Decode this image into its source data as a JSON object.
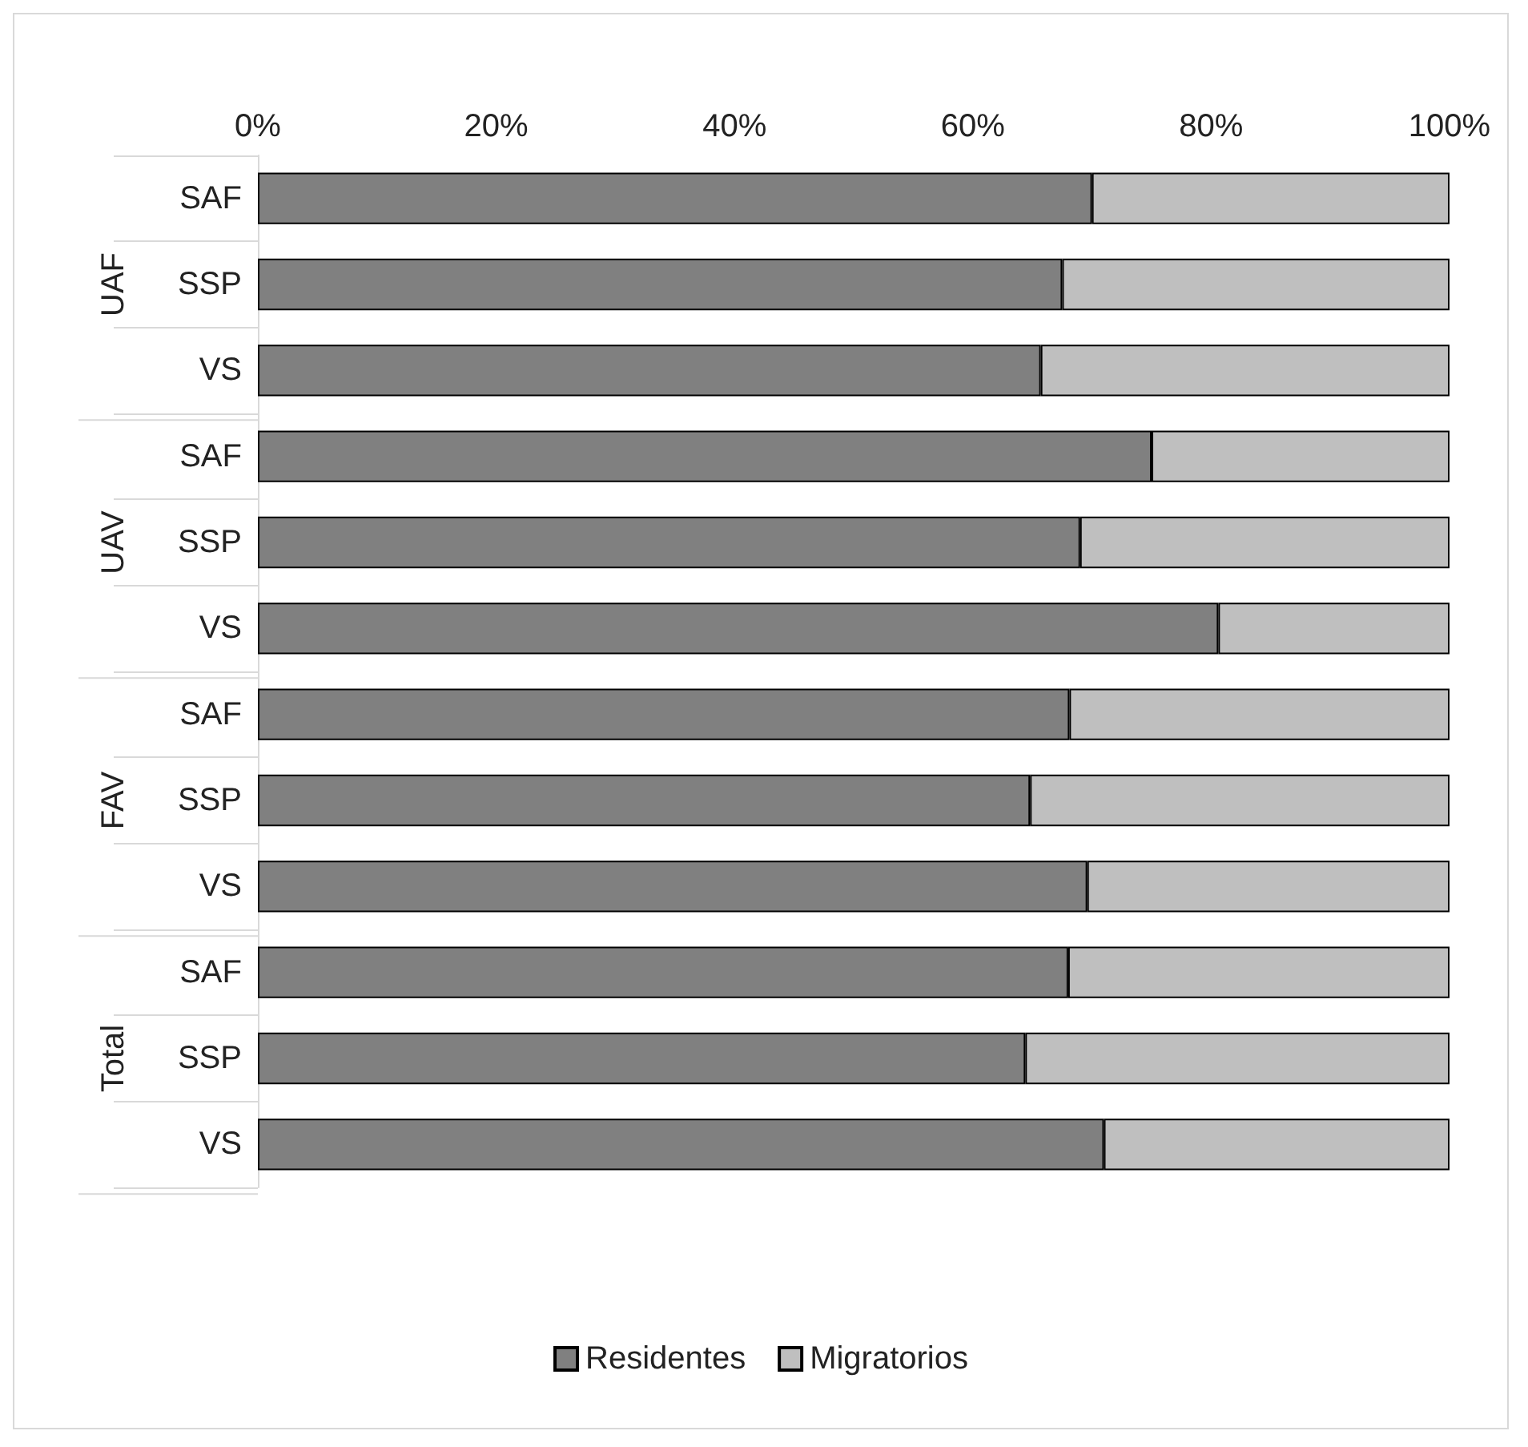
{
  "chart_data": {
    "type": "bar",
    "orientation": "horizontal",
    "stacked": true,
    "categories": [
      "SAF",
      "SSP",
      "VS",
      "SAF",
      "SSP",
      "VS",
      "SAF",
      "SSP",
      "VS",
      "SAF",
      "SSP",
      "VS"
    ],
    "annotations": [
      "UAF",
      "UAV",
      "FAV",
      "Total"
    ],
    "series": [
      {
        "name": "Residentes",
        "color": "#808080",
        "values": [
          70,
          67.5,
          65.7,
          75,
          69,
          80.6,
          68.1,
          64.8,
          69.6,
          68,
          64.4,
          71
        ]
      },
      {
        "name": "Migratorios",
        "color": "#bfbfbf",
        "values": [
          30,
          32.5,
          34.3,
          25,
          31,
          19.4,
          31.9,
          35.2,
          30.4,
          32,
          35.6,
          29
        ]
      }
    ],
    "xlim": [
      0,
      100
    ],
    "xticks": [
      {
        "value": 0,
        "label": "0%"
      },
      {
        "value": 20,
        "label": "20%"
      },
      {
        "value": 40,
        "label": "40%"
      },
      {
        "value": 60,
        "label": "60%"
      },
      {
        "value": 80,
        "label": "80%"
      },
      {
        "value": 100,
        "label": "100%"
      }
    ],
    "grid": false,
    "legend": "bottom"
  }
}
